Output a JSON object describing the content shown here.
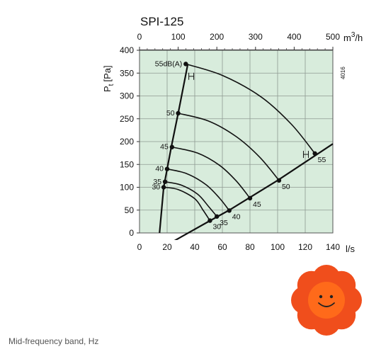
{
  "chart_data": {
    "type": "line",
    "title": "SPI-125",
    "xlabel": "l/s",
    "x2label_base": "m",
    "x2label_exp": "3",
    "x2label_tail": "/h",
    "ylabel_main": "P",
    "ylabel_sub": "t",
    "ylabel_unit": "[Pa]",
    "xlim": [
      0,
      140
    ],
    "ylim": [
      0,
      400
    ],
    "x2lim": [
      0,
      500
    ],
    "xticks": [
      "0",
      "20",
      "40",
      "60",
      "80",
      "100",
      "120",
      "140"
    ],
    "yticks": [
      "0",
      "50",
      "100",
      "150",
      "200",
      "250",
      "300",
      "350",
      "400"
    ],
    "x2ticks": [
      "0",
      "100",
      "200",
      "300",
      "400",
      "500"
    ],
    "grid": true,
    "side_label": "4016",
    "fan_curve": {
      "x": [
        14.5,
        17.5,
        20,
        23,
        28,
        35
      ],
      "y": [
        0,
        100,
        140,
        188,
        262,
        370
      ]
    },
    "system_line": {
      "x": [
        0,
        50,
        65,
        100,
        140
      ],
      "y": [
        -60,
        25,
        50,
        115,
        195
      ]
    },
    "noise_curves": [
      {
        "label": "30",
        "x": [
          17.5,
          28,
          40,
          46,
          51
        ],
        "y": [
          100,
          95,
          75,
          50,
          27
        ]
      },
      {
        "label": "35",
        "x": [
          18.5,
          30,
          42,
          50,
          56
        ],
        "y": [
          112,
          105,
          85,
          58,
          36
        ]
      },
      {
        "label": "40",
        "x": [
          20,
          34,
          48,
          58,
          65
        ],
        "y": [
          140,
          130,
          106,
          76,
          49
        ]
      },
      {
        "label": "45",
        "x": [
          23.5,
          42,
          58,
          70,
          80
        ],
        "y": [
          188,
          175,
          148,
          114,
          76
        ]
      },
      {
        "label": "50",
        "x": [
          28,
          50,
          70,
          87,
          101
        ],
        "y": [
          262,
          245,
          211,
          166,
          115
        ]
      },
      {
        "label": "55dB(A)",
        "x": [
          33.5,
          60,
          88,
          110,
          127
        ],
        "y": [
          370,
          345,
          298,
          238,
          174
        ]
      }
    ],
    "points_fan": [
      {
        "label": "30",
        "x": 17.5,
        "y": 100
      },
      {
        "label": "35",
        "x": 18.5,
        "y": 112
      },
      {
        "label": "40",
        "x": 20,
        "y": 140
      },
      {
        "label": "45",
        "x": 23.5,
        "y": 188
      },
      {
        "label": "50",
        "x": 28,
        "y": 262
      },
      {
        "label": "55dB(A)",
        "x": 33.5,
        "y": 370
      }
    ],
    "points_system": [
      {
        "label": "30",
        "x": 51,
        "y": 27
      },
      {
        "label": "35",
        "x": 56,
        "y": 36
      },
      {
        "label": "40",
        "x": 65,
        "y": 49
      },
      {
        "label": "45",
        "x": 80,
        "y": 76
      },
      {
        "label": "50",
        "x": 101,
        "y": 115
      },
      {
        "label": "55",
        "x": 127,
        "y": 174
      }
    ]
  },
  "caption": "Mid-frequency band, Hz",
  "colors": {
    "plot_bg": "#d8ecdc",
    "grid": "#8f9a92",
    "curve": "#111111",
    "flower_petal": "#f04e1c",
    "flower_center": "#ff6a1a"
  }
}
